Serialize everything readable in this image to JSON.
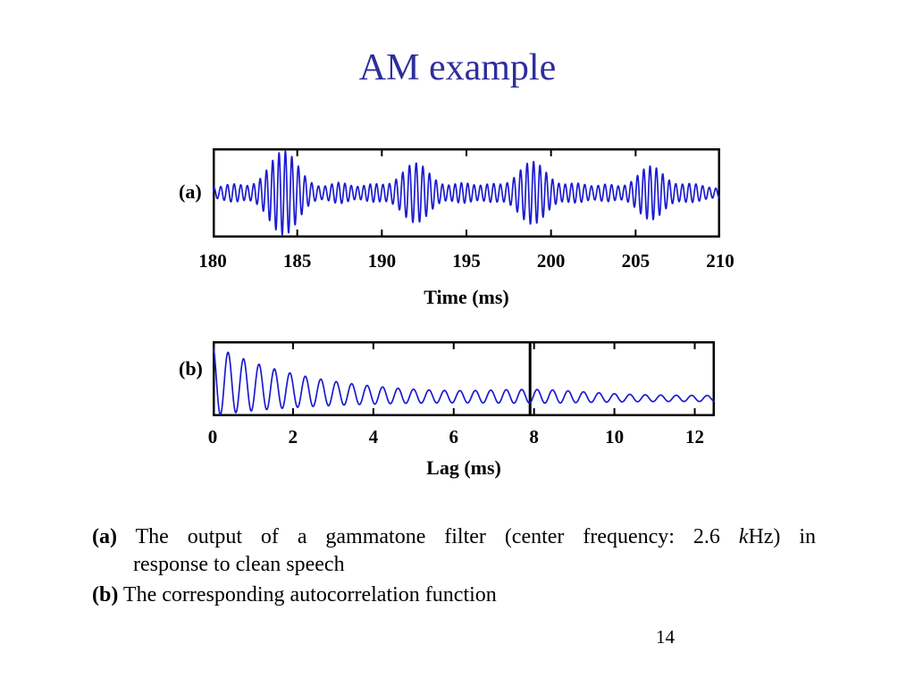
{
  "slide": {
    "title": "AM example",
    "title_color": "#2e2e9c",
    "page_number": "14"
  },
  "captions": {
    "a_label": "(a)",
    "a_text_1": "The output of a gammatone filter (center frequency: 2.6",
    "a_text_k": "k",
    "a_text_2": "Hz) in",
    "a_text_line2": "response to clean speech",
    "b_label": "(b)",
    "b_text": "The corresponding autocorrelation function"
  },
  "chart_data": [
    {
      "type": "line",
      "panel_label": "(a)",
      "title": "",
      "xlabel": "Time (ms)",
      "ylabel": "",
      "xlim": [
        180,
        210
      ],
      "ylim": [
        -1.15,
        1.15
      ],
      "xticks": [
        "180",
        "185",
        "190",
        "195",
        "200",
        "205",
        "210"
      ],
      "xtick_values": [
        180,
        185,
        190,
        195,
        200,
        205,
        210
      ],
      "line_color": "#1b1bd0",
      "grid": false,
      "description": "Amplitude-modulated output of a 2.6 kHz gammatone filter; energy bursts recur at the speech pitch period (~7.9 ms).",
      "signal_model": {
        "kind": "am-bursts",
        "carrier_cycles_per_ms": 2.6,
        "baseline_amplitude": 0.12,
        "bursts": [
          {
            "center_ms": 184.2,
            "amplitude": 1.0,
            "sigma_ms": 0.85
          },
          {
            "center_ms": 192.0,
            "amplitude": 0.68,
            "sigma_ms": 0.8
          },
          {
            "center_ms": 198.9,
            "amplitude": 0.72,
            "sigma_ms": 0.8
          },
          {
            "center_ms": 205.9,
            "amplitude": 0.6,
            "sigma_ms": 0.75
          }
        ],
        "minor_bursts": [
          {
            "center_ms": 181.2,
            "amplitude": 0.12,
            "sigma_ms": 0.55
          },
          {
            "center_ms": 187.5,
            "amplitude": 0.16,
            "sigma_ms": 0.55
          },
          {
            "center_ms": 189.5,
            "amplitude": 0.12,
            "sigma_ms": 0.55
          },
          {
            "center_ms": 194.8,
            "amplitude": 0.15,
            "sigma_ms": 0.6
          },
          {
            "center_ms": 196.5,
            "amplitude": 0.12,
            "sigma_ms": 0.5
          },
          {
            "center_ms": 201.5,
            "amplitude": 0.14,
            "sigma_ms": 0.6
          },
          {
            "center_ms": 203.3,
            "amplitude": 0.11,
            "sigma_ms": 0.5
          },
          {
            "center_ms": 208.3,
            "amplitude": 0.13,
            "sigma_ms": 0.6
          }
        ]
      }
    },
    {
      "type": "line",
      "panel_label": "(b)",
      "title": "",
      "xlabel": "Lag (ms)",
      "ylabel": "",
      "xlim": [
        0,
        12.5
      ],
      "xticks": [
        "0",
        "2",
        "4",
        "6",
        "8",
        "10",
        "12"
      ],
      "xtick_values": [
        0,
        2,
        4,
        6,
        8,
        10,
        12
      ],
      "line_color": "#1b1bd0",
      "grid": false,
      "marker_line": {
        "x_ms": 7.9,
        "color": "#000000",
        "meaning": "pitch-period lag"
      },
      "description": "Autocorrelation function of (a): oscillation at the 2.6 kHz carrier rate decaying with lag; vertical line marks lag near 7.9 ms.",
      "signal_model": {
        "kind": "decaying-autocorrelation",
        "osc_cycles_per_ms": 2.6,
        "decay_tau_ms": 2.4,
        "floor": 0.08,
        "negative_lobe_ratio": 0.28,
        "pitch_bump": {
          "center_ms": 8.1,
          "amplitude": 0.08,
          "sigma_ms": 1.2
        }
      }
    }
  ]
}
